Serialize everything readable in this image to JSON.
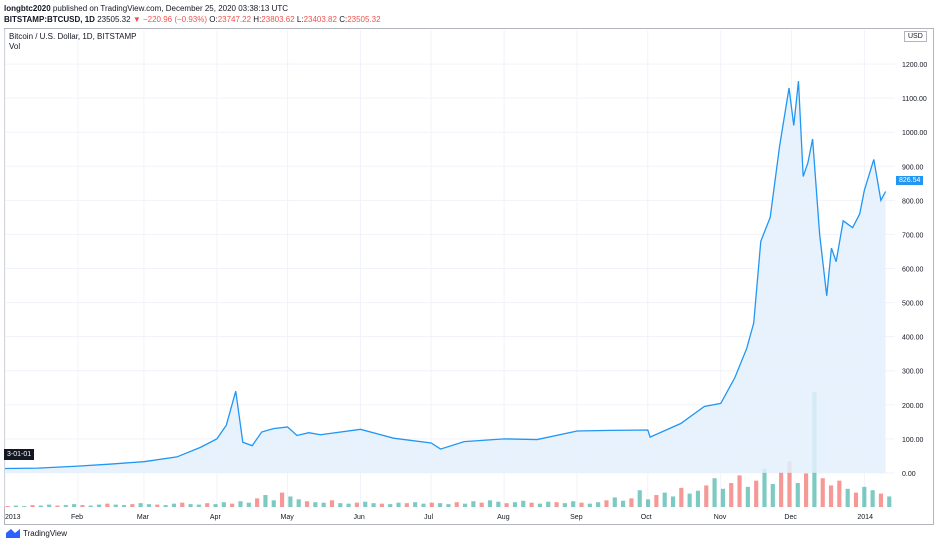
{
  "header": {
    "author": "longbtc2020",
    "published": "published on TradingView.com, December 25, 2020 03:38:13 UTC",
    "symbol": "BITSTAMP:BTCUSD, 1D",
    "last": "23505.32",
    "change": "▼ −220.96 (−0.93%)",
    "o_label": "O:",
    "o_val": "23747.22",
    "h_label": "H:",
    "h_val": "23803.62",
    "l_label": "L:",
    "l_val": "23403.82",
    "c_label": "C:",
    "c_val": "23505.32"
  },
  "legend": {
    "title": "Bitcoin / U.S. Dollar, 1D, BITSTAMP",
    "vol": "Vol"
  },
  "currency": "USD",
  "price_badge": "826.54",
  "date_badge": "3-01-01",
  "footer": {
    "brand": "TradingView"
  },
  "colors": {
    "line": "#2196f3",
    "fill": "#e3f0fd",
    "vol_up": "#26a69a",
    "vol_down": "#ef5350",
    "grid": "#f0f3fa"
  },
  "chart_data": {
    "type": "area",
    "ylim": [
      -100,
      1300
    ],
    "y_ticks": [
      "1200.00",
      "1100.00",
      "1000.00",
      "900.00",
      "800.00",
      "700.00",
      "600.00",
      "500.00",
      "400.00",
      "300.00",
      "200.00",
      "100.00",
      "0.00"
    ],
    "x_ticks": [
      "2013",
      "Feb",
      "Mar",
      "Apr",
      "May",
      "Jun",
      "Jul",
      "Aug",
      "Sep",
      "Oct",
      "Nov",
      "Dec",
      "2014"
    ],
    "series": [
      {
        "x": [
          "2013-01-01",
          "2013-01-15",
          "2013-02-01",
          "2013-02-15",
          "2013-03-01",
          "2013-03-15",
          "2013-03-25",
          "2013-04-01",
          "2013-04-05",
          "2013-04-09",
          "2013-04-10",
          "2013-04-12",
          "2013-04-16",
          "2013-04-20",
          "2013-04-25",
          "2013-05-01",
          "2013-05-05",
          "2013-05-10",
          "2013-05-15",
          "2013-06-01",
          "2013-06-15",
          "2013-07-01",
          "2013-07-05",
          "2013-07-15",
          "2013-08-01",
          "2013-08-15",
          "2013-09-01",
          "2013-09-15",
          "2013-10-01",
          "2013-10-02",
          "2013-10-15",
          "2013-10-25",
          "2013-11-01",
          "2013-11-07",
          "2013-11-12",
          "2013-11-15",
          "2013-11-18",
          "2013-11-22",
          "2013-11-26",
          "2013-11-30",
          "2013-12-02",
          "2013-12-04",
          "2013-12-06",
          "2013-12-08",
          "2013-12-10",
          "2013-12-13",
          "2013-12-16",
          "2013-12-18",
          "2013-12-20",
          "2013-12-23",
          "2013-12-27",
          "2013-12-30",
          "2014-01-01",
          "2014-01-05",
          "2014-01-08",
          "2014-01-10"
        ],
        "values": [
          13,
          14,
          20,
          26,
          33,
          47,
          75,
          100,
          140,
          240,
          190,
          90,
          80,
          120,
          130,
          135,
          110,
          118,
          112,
          128,
          102,
          88,
          70,
          92,
          100,
          98,
          123,
          125,
          126,
          105,
          145,
          195,
          204,
          280,
          365,
          440,
          680,
          750,
          960,
          1130,
          1020,
          1150,
          870,
          910,
          980,
          700,
          520,
          660,
          620,
          740,
          720,
          760,
          830,
          920,
          800,
          826
        ]
      }
    ],
    "volume": [
      2,
      3,
      2,
      4,
      3,
      5,
      3,
      4,
      6,
      4,
      3,
      5,
      7,
      5,
      4,
      6,
      8,
      6,
      5,
      4,
      7,
      9,
      6,
      5,
      8,
      6,
      10,
      7,
      12,
      9,
      18,
      25,
      14,
      30,
      22,
      16,
      12,
      10,
      9,
      14,
      8,
      7,
      9,
      11,
      8,
      7,
      6,
      9,
      8,
      10,
      7,
      9,
      8,
      6,
      10,
      7,
      12,
      9,
      14,
      11,
      8,
      10,
      13,
      9,
      7,
      11,
      10,
      8,
      12,
      9,
      7,
      10,
      14,
      20,
      13,
      18,
      35,
      16,
      25,
      30,
      22,
      40,
      28,
      34,
      45,
      60,
      38,
      50,
      66,
      42,
      55,
      80,
      48,
      72,
      95,
      50,
      70,
      240,
      60,
      45,
      55,
      38,
      30,
      42,
      35,
      28,
      22
    ]
  }
}
